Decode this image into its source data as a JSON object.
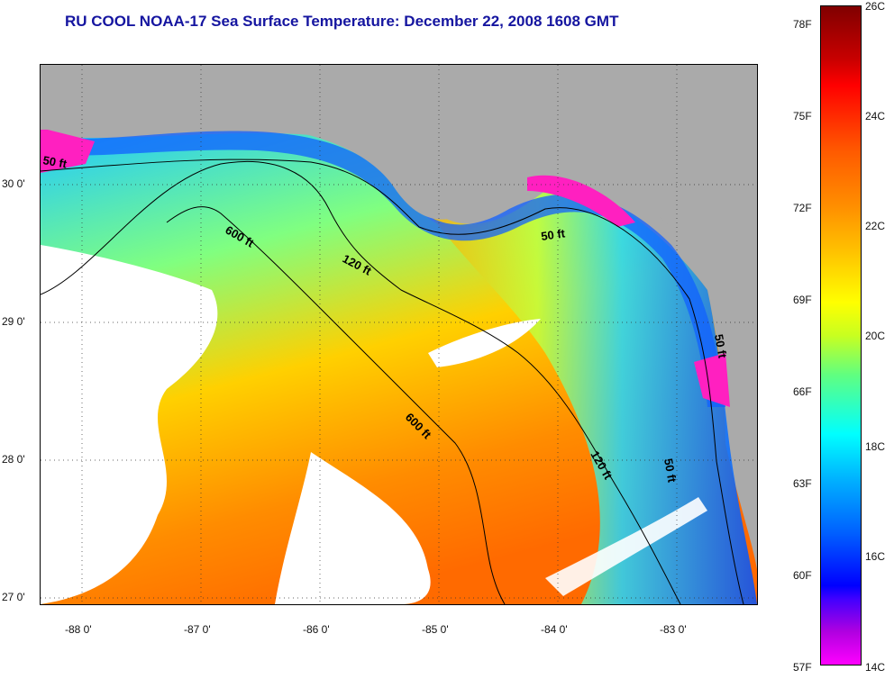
{
  "title": "RU COOL  NOAA-17  Sea Surface Temperature:  December 22, 2008 1608 GMT",
  "lat_labels": [
    "30 0'",
    "29 0'",
    "28 0'",
    "27 0'"
  ],
  "lon_labels": [
    "-88 0'",
    "-87 0'",
    "-86 0'",
    "-85 0'",
    "-84 0'",
    "-83 0'"
  ],
  "contour_labels": [
    "50 ft",
    "120 ft",
    "600 ft",
    "600 ft",
    "50 ft",
    "120 ft",
    "50 ft",
    "50 ft"
  ],
  "colorbar": {
    "celsius": [
      "26C",
      "24C",
      "22C",
      "20C",
      "18C",
      "16C",
      "14C"
    ],
    "fahrenheit": [
      "78F",
      "75F",
      "72F",
      "69F",
      "66F",
      "63F",
      "60F",
      "57F"
    ]
  },
  "colors": {
    "land": "#aaaaaa",
    "title": "#1515a0",
    "cloud": "#ffffff"
  }
}
